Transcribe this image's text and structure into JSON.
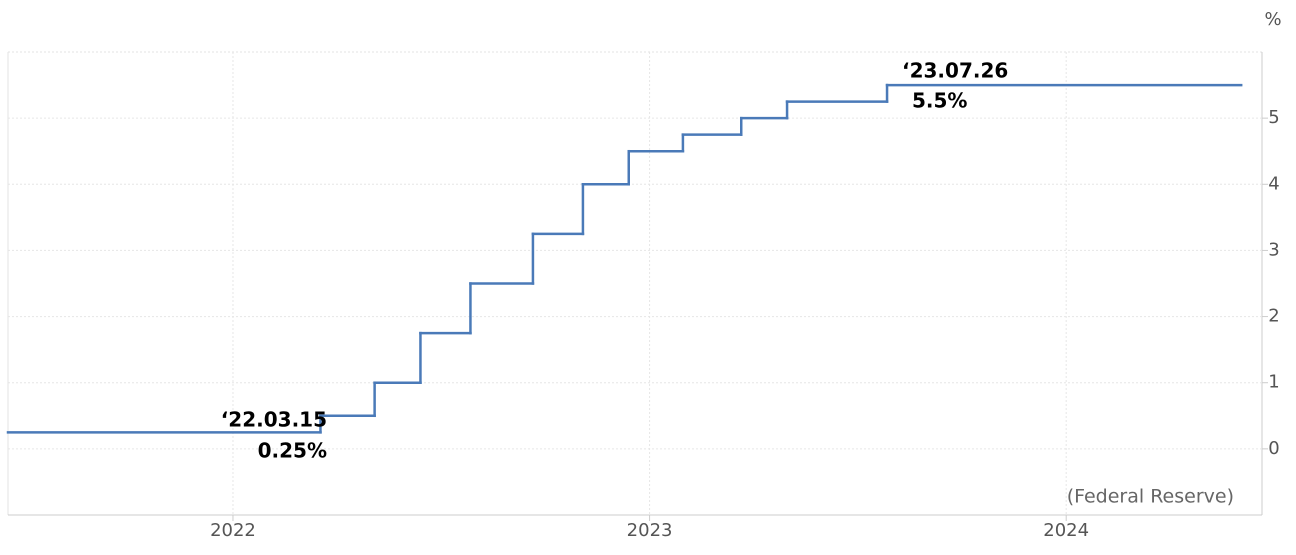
{
  "chart_data": {
    "type": "step",
    "unit_label": "%",
    "source": "(Federal Reserve)",
    "x": [
      2021.46,
      2022.21,
      2022.34,
      2022.45,
      2022.57,
      2022.72,
      2022.84,
      2022.95,
      2023.08,
      2023.22,
      2023.33,
      2023.57,
      2024.42
    ],
    "values": [
      0.25,
      0.5,
      1.0,
      1.75,
      2.5,
      3.25,
      4.0,
      4.5,
      4.75,
      5.0,
      5.25,
      5.5,
      5.5
    ],
    "color": "#4a7ab8",
    "xlim": [
      2021.46,
      2024.47
    ],
    "xticks": [
      2022,
      2023,
      2024
    ],
    "ylim": [
      -1,
      6
    ],
    "yticks": [
      0,
      1,
      2,
      3,
      4,
      5
    ],
    "grid": true,
    "annotations": [
      {
        "date": "‘22.03.15",
        "value_label": "0.25%"
      },
      {
        "date": "‘23.07.26",
        "value_label": "5.5%"
      }
    ]
  }
}
